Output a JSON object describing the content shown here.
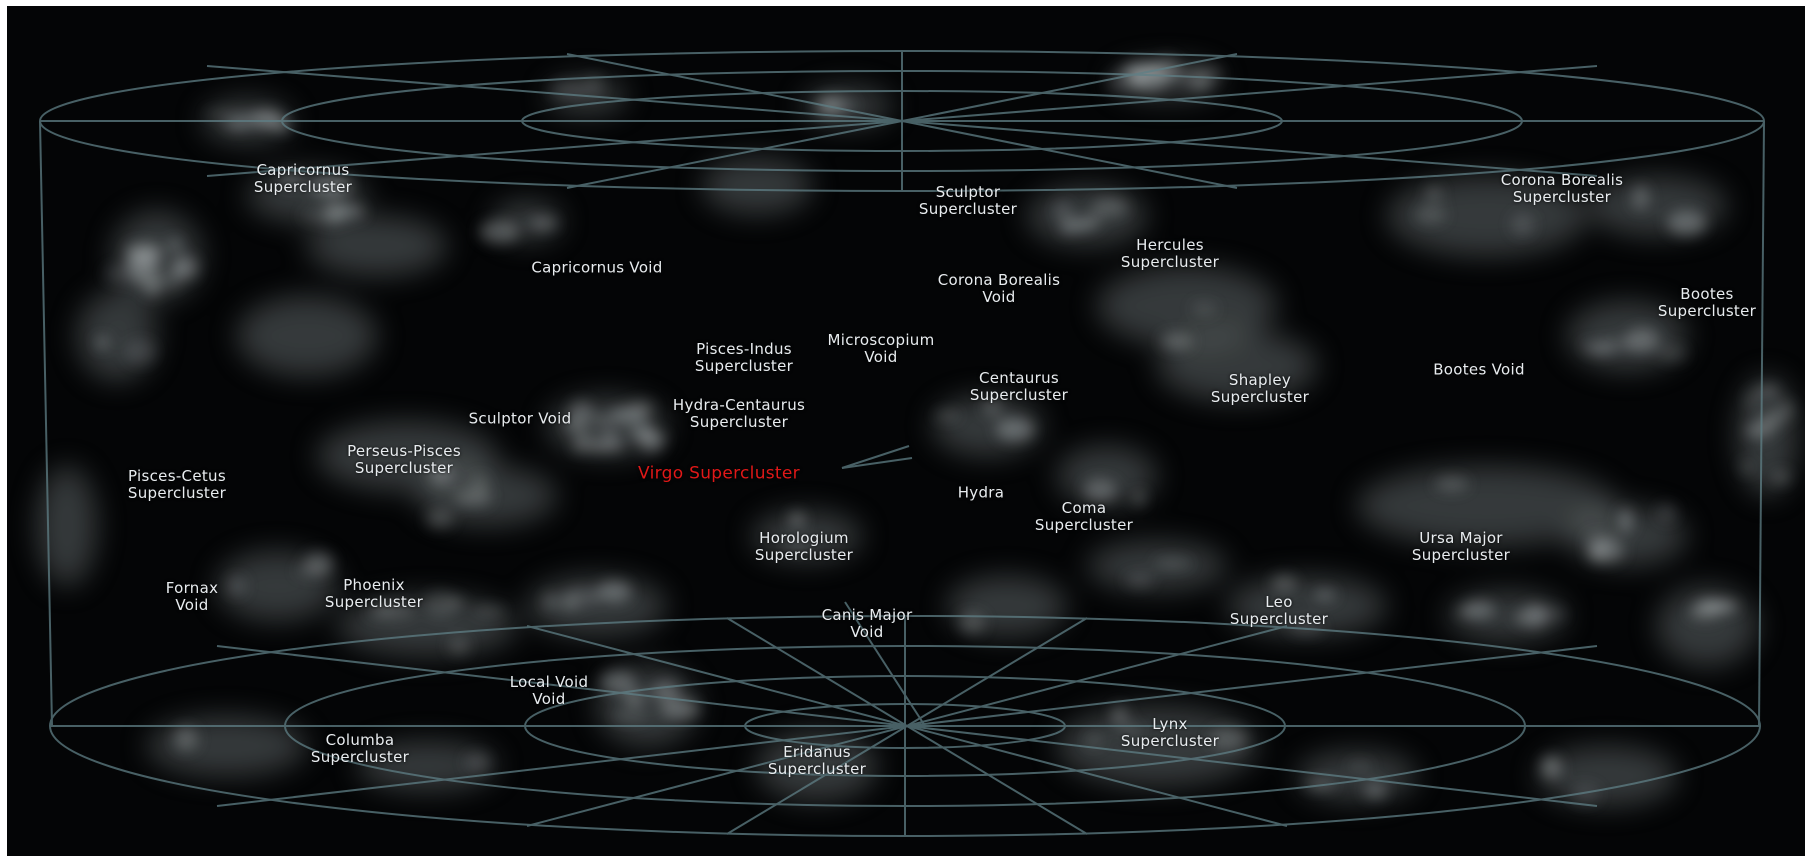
{
  "accent_color": "#e01818",
  "wireframe_color": "#5f7f86",
  "labels": {
    "capricornus_sc": [
      "Capricornus",
      "Supercluster"
    ],
    "sculptor_sc": [
      "Sculptor",
      "Supercluster"
    ],
    "corona_borealis_sc": [
      "Corona Borealis",
      "Supercluster"
    ],
    "capricornus_void": [
      "Capricornus Void"
    ],
    "hercules_sc": [
      "Hercules",
      "Supercluster"
    ],
    "corona_borealis_void": [
      "Corona Borealis",
      "Void"
    ],
    "bootes_sc": [
      "Bootes",
      "Supercluster"
    ],
    "pisces_indus_sc": [
      "Pisces-Indus",
      "Supercluster"
    ],
    "microscopium_void": [
      "Microscopium",
      "Void"
    ],
    "centaurus_sc": [
      "Centaurus",
      "Supercluster"
    ],
    "shapley_sc": [
      "Shapley",
      "Supercluster"
    ],
    "bootes_void": [
      "Bootes Void"
    ],
    "hydra_centaurus_sc": [
      "Hydra-Centaurus",
      "Supercluster"
    ],
    "sculptor_void": [
      "Sculptor Void"
    ],
    "perseus_pisces_sc": [
      "Perseus-Pisces",
      "Supercluster"
    ],
    "pisces_cetus_sc": [
      "Pisces-Cetus",
      "Supercluster"
    ],
    "virgo_sc": [
      "Virgo Supercluster"
    ],
    "hydra": [
      "Hydra"
    ],
    "coma_sc": [
      "Coma",
      "Supercluster"
    ],
    "horologium_sc": [
      "Horologium",
      "Supercluster"
    ],
    "ursa_major_sc": [
      "Ursa Major",
      "Supercluster"
    ],
    "fornax_void": [
      "Fornax",
      "Void"
    ],
    "phoenix_sc": [
      "Phoenix",
      "Supercluster"
    ],
    "canis_major_void": [
      "Canis Major",
      "Void"
    ],
    "leo_sc": [
      "Leo",
      "Supercluster"
    ],
    "local_void": [
      "Local Void",
      "Void"
    ],
    "columba_sc": [
      "Columba",
      "Supercluster"
    ],
    "lynx_sc": [
      "Lynx",
      "Supercluster"
    ],
    "eridanus_sc": [
      "Eridanus",
      "Supercluster"
    ]
  }
}
